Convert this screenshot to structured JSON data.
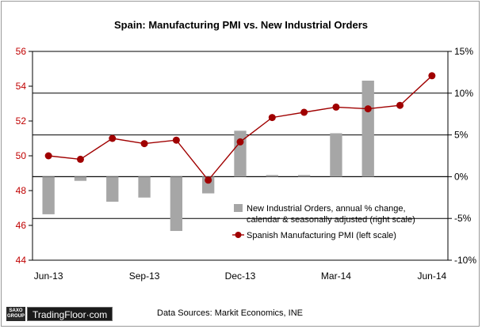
{
  "chart_data": {
    "type": "bar+line",
    "title": "Spain: Manufacturing PMI vs. New Industrial Orders",
    "x": [
      "Jun-13",
      "Jul-13",
      "Aug-13",
      "Sep-13",
      "Oct-13",
      "Nov-13",
      "Dec-13",
      "Jan-14",
      "Feb-14",
      "Mar-14",
      "Apr-14",
      "May-14",
      "Jun-14"
    ],
    "x_tick_labels": [
      "Jun-13",
      "Sep-13",
      "Dec-13",
      "Mar-14",
      "Jun-14"
    ],
    "left_axis": {
      "ylim": [
        44,
        56
      ],
      "ticks": [
        "44",
        "46",
        "48",
        "50",
        "52",
        "54",
        "56"
      ]
    },
    "right_axis": {
      "ylim": [
        -10,
        15
      ],
      "ticks": [
        "-10%",
        "-5%",
        "0%",
        "5%",
        "10%",
        "15%"
      ]
    },
    "series": [
      {
        "name": "New Industrial Orders, annual % change, calendar & seasonally adjusted  (right scale)",
        "type": "bar",
        "axis": "right",
        "color": "#a6a6a6",
        "values": [
          -4.5,
          -0.5,
          -3.0,
          -2.5,
          -6.5,
          -2.0,
          5.5,
          0.2,
          0.2,
          5.2,
          11.5,
          null,
          null
        ]
      },
      {
        "name": "Spanish Manufacturing PMI (left scale)",
        "type": "line",
        "axis": "left",
        "color": "#a00000",
        "values": [
          50.0,
          49.8,
          51.0,
          50.7,
          50.9,
          48.6,
          50.8,
          52.2,
          52.5,
          52.8,
          52.7,
          52.9,
          54.6
        ]
      }
    ],
    "gridlines": "horizontal at right-axis ticks",
    "legend_position": "bottom-right"
  },
  "logo": {
    "box_line1": "SAXO",
    "box_line2": "GROUP",
    "brand": "TradingFloor·com"
  },
  "source_note": "Data Sources: Markit Economics, INE"
}
